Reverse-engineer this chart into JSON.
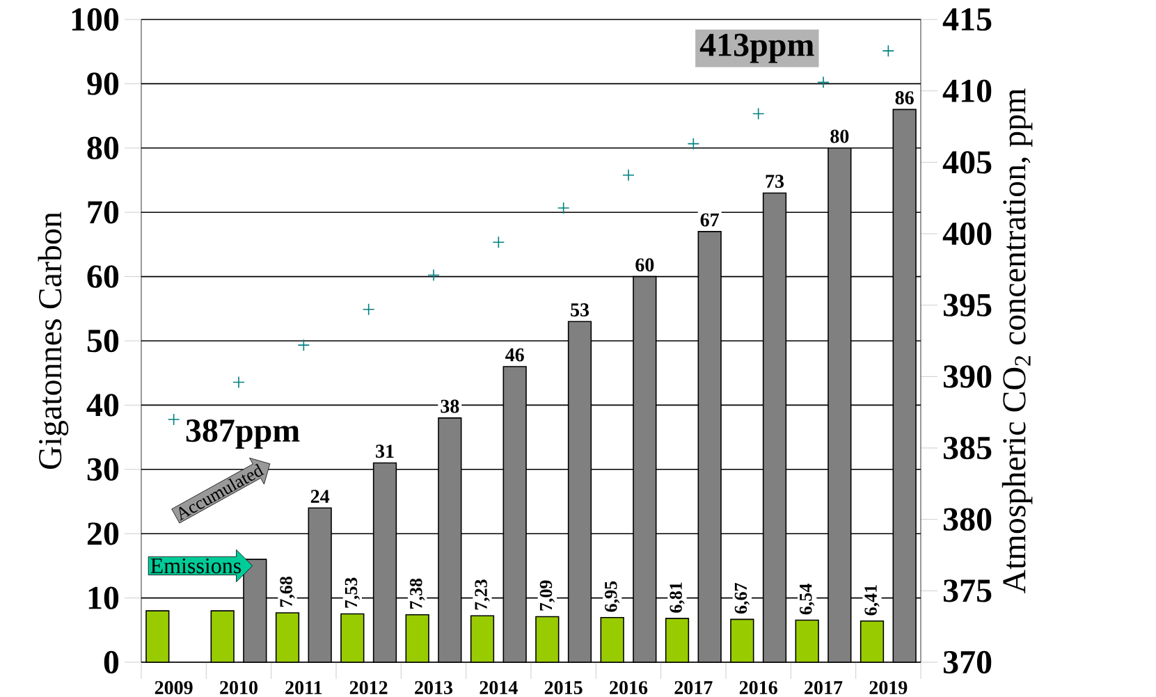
{
  "chart_data": {
    "type": "bar",
    "ylabel": "Gigatonnes Carbon",
    "y2label": "Atmospheric CO$_{2}$ concentration, ppm",
    "categories": [
      "2009",
      "2010",
      "2011",
      "2012",
      "2013",
      "2014",
      "2015",
      "2016",
      "2017",
      "2016",
      "2017",
      "2019"
    ],
    "series": [
      {
        "color": "#99cc00",
        "values": [
          8.0,
          8.0,
          7.68,
          7.53,
          7.38,
          7.23,
          7.09,
          6.95,
          6.81,
          6.67,
          6.54,
          6.41
        ],
        "value_labels": [
          null,
          null,
          "7,68",
          "7,53",
          "7,38",
          "7,23",
          "7,09",
          "6,95",
          "6,81",
          "6,67",
          "6,54",
          "6,41"
        ]
      },
      {
        "color": "#808080",
        "values": [
          null,
          16,
          24,
          31,
          38,
          46,
          53,
          60,
          67,
          73,
          80,
          86
        ],
        "value_labels": [
          null,
          null,
          "24",
          "31",
          "38",
          "46",
          "53",
          "60",
          "67",
          "73",
          "80",
          "86"
        ]
      },
      {
        "type": "scatter",
        "axis": "y2",
        "marker": "cross",
        "color": "#008080",
        "values": [
          387.0,
          389.6,
          392.2,
          394.7,
          397.1,
          399.4,
          401.8,
          404.1,
          406.3,
          408.4,
          410.6,
          412.8
        ]
      }
    ],
    "ylim": [
      0,
      100
    ],
    "yticks": [
      0,
      10,
      20,
      30,
      40,
      50,
      60,
      70,
      80,
      90,
      100
    ],
    "y2lim": [
      370,
      415
    ],
    "y2ticks": [
      370,
      375,
      380,
      385,
      390,
      395,
      400,
      405,
      410,
      415
    ],
    "grid": "y",
    "annotations": [
      "387ppm",
      "413ppm",
      "Emissions",
      "Accumulated"
    ]
  }
}
